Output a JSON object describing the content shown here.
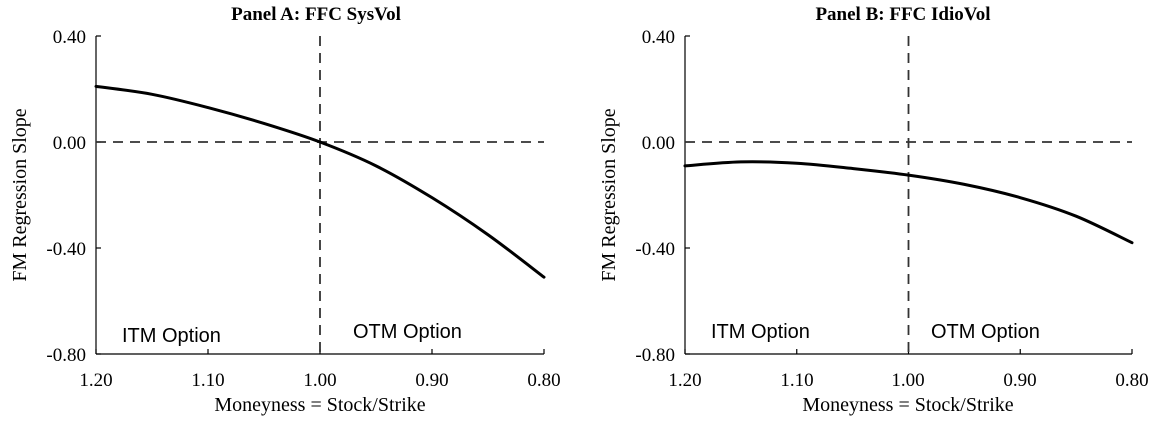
{
  "chart_data": [
    {
      "type": "line",
      "title": "Panel A: FFC SysVol",
      "xlabel": "Moneyness = Stock/Strike",
      "ylabel": "FM Regression Slope",
      "xlim": [
        1.2,
        0.8
      ],
      "ylim": [
        -0.8,
        0.4
      ],
      "x_reversed": true,
      "xticks": [
        "1.20",
        "1.10",
        "1.00",
        "0.90",
        "0.80"
      ],
      "yticks": [
        "0.40",
        "0.00",
        "-0.40",
        "-0.80"
      ],
      "reference_lines": {
        "x": 1.0,
        "y": 0.0,
        "style": "dashed"
      },
      "annotations": {
        "left": "ITM Option",
        "right": "OTM Option"
      },
      "series": [
        {
          "x": [
            1.2,
            1.15,
            1.1,
            1.05,
            1.0,
            0.95,
            0.9,
            0.85,
            0.8
          ],
          "values": [
            0.21,
            0.18,
            0.13,
            0.07,
            0.0,
            -0.09,
            -0.21,
            -0.35,
            -0.51
          ]
        }
      ]
    },
    {
      "type": "line",
      "title": "Panel B: FFC IdioVol",
      "xlabel": "Moneyness = Stock/Strike",
      "ylabel": "FM Regression Slope",
      "xlim": [
        1.2,
        0.8
      ],
      "ylim": [
        -0.8,
        0.4
      ],
      "x_reversed": true,
      "xticks": [
        "1.20",
        "1.10",
        "1.00",
        "0.90",
        "0.80"
      ],
      "yticks": [
        "0.40",
        "0.00",
        "-0.40",
        "-0.80"
      ],
      "reference_lines": {
        "x": 1.0,
        "y": 0.0,
        "style": "dashed"
      },
      "annotations": {
        "left": "ITM Option",
        "right": "OTM Option"
      },
      "series": [
        {
          "x": [
            1.2,
            1.15,
            1.1,
            1.05,
            1.0,
            0.95,
            0.9,
            0.85,
            0.8
          ],
          "values": [
            -0.09,
            -0.075,
            -0.08,
            -0.1,
            -0.125,
            -0.16,
            -0.21,
            -0.28,
            -0.38
          ]
        }
      ]
    }
  ]
}
